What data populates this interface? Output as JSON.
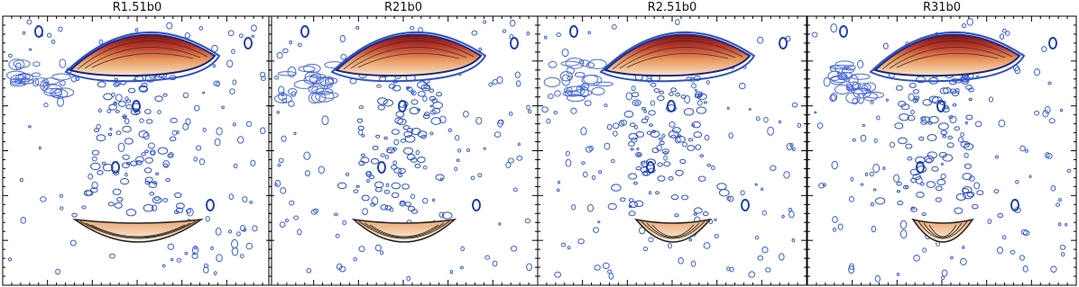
{
  "panels": [
    {
      "title": "R1.51b0"
    },
    {
      "title": "R21b0"
    },
    {
      "title": "R2.51b0"
    },
    {
      "title": "R31b0"
    }
  ]
}
